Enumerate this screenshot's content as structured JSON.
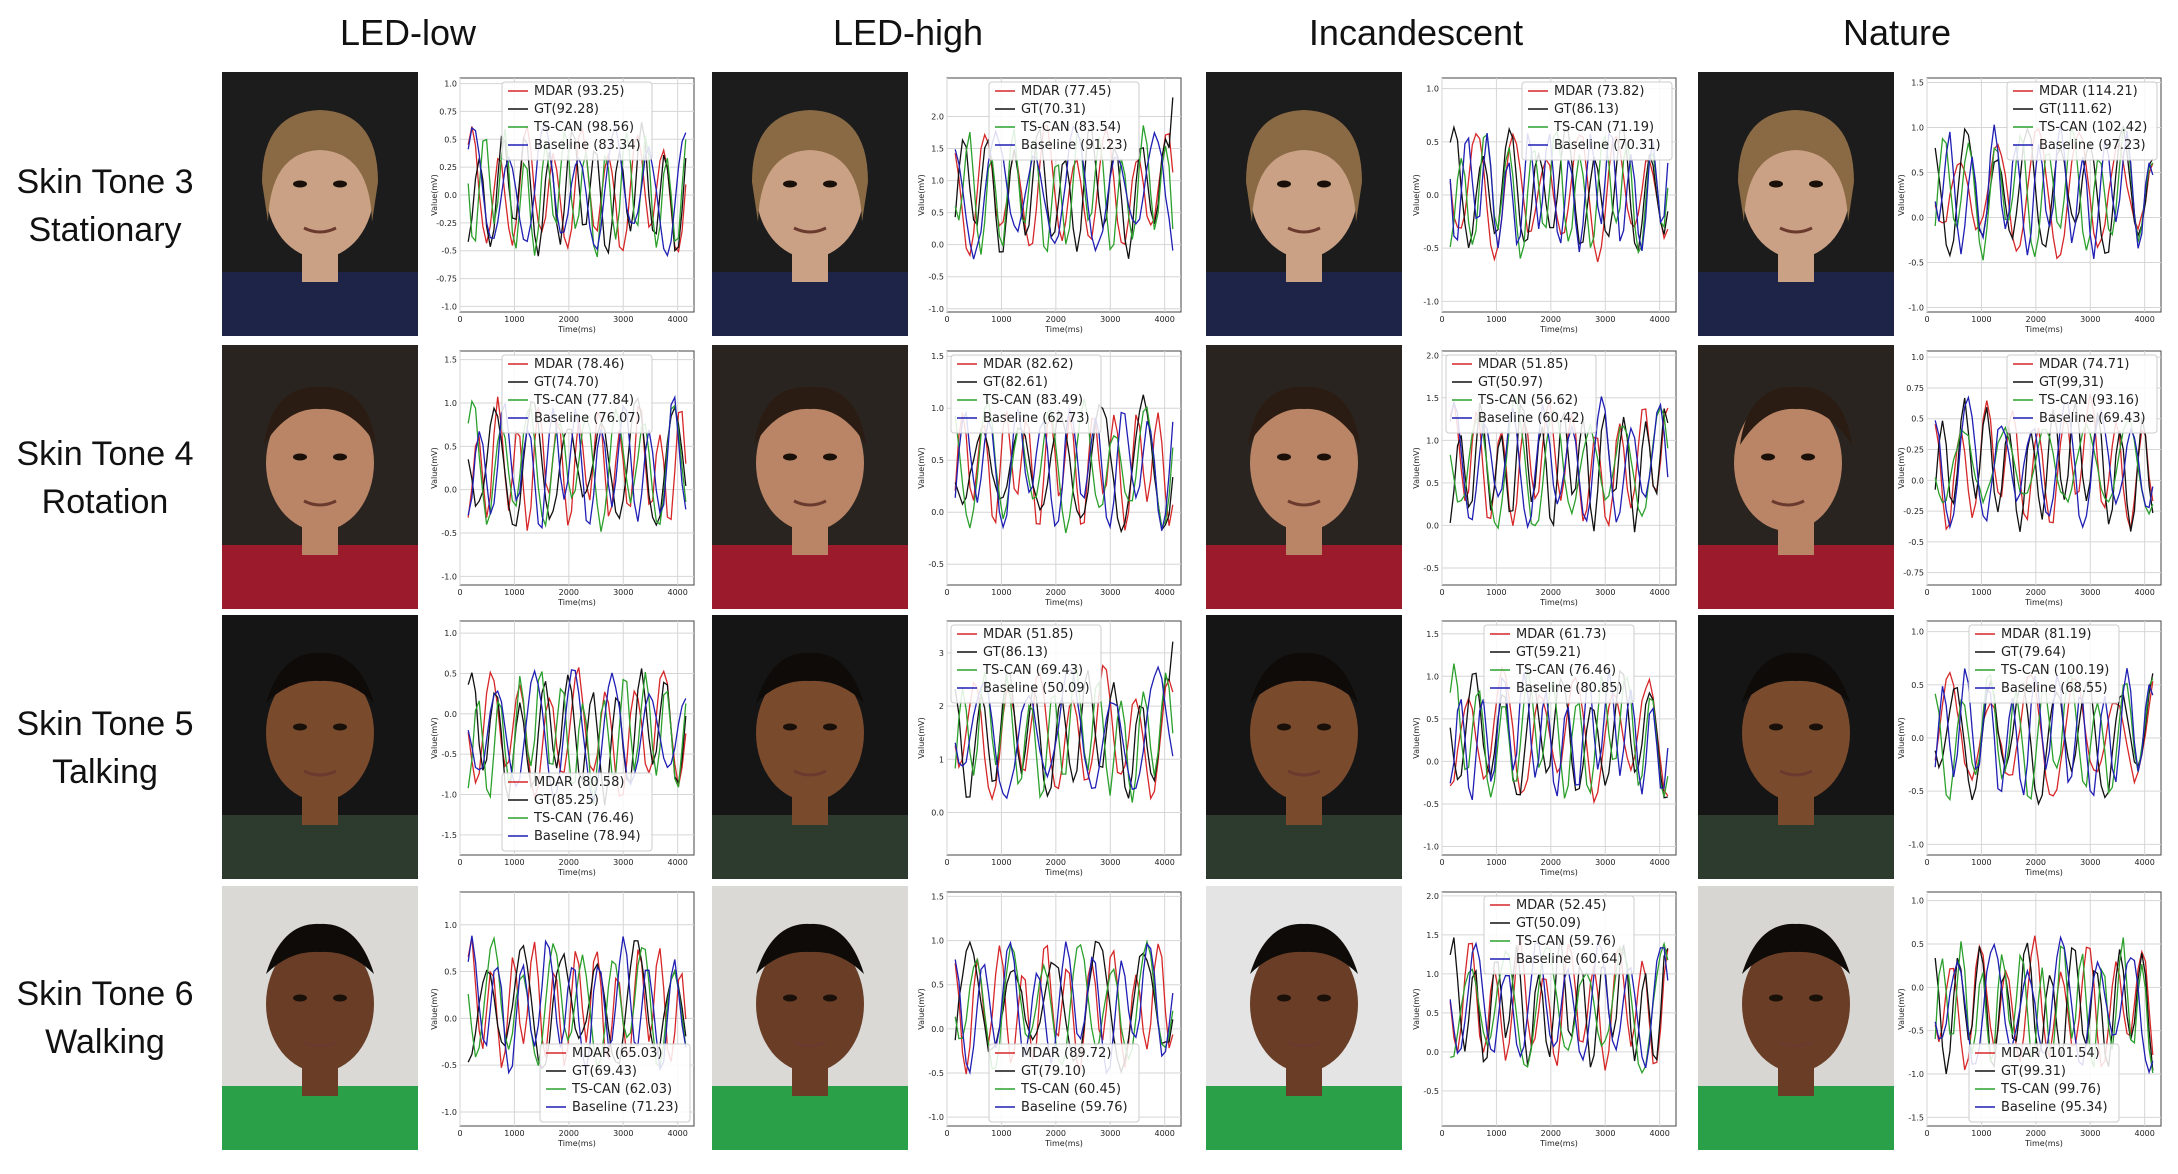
{
  "columns": [
    "LED-low",
    "LED-high",
    "Incandescent",
    "Nature"
  ],
  "rows": [
    {
      "tone": "Skin Tone 3",
      "motion": "Stationary"
    },
    {
      "tone": "Skin Tone 4",
      "motion": "Rotation"
    },
    {
      "tone": "Skin Tone 5",
      "motion": "Talking"
    },
    {
      "tone": "Skin Tone 6",
      "motion": "Walking"
    }
  ],
  "series_colors": {
    "MDAR": "#d62728",
    "GT": "#111111",
    "TS-CAN": "#2ca02c",
    "Baseline": "#1f1fb4"
  },
  "photo_palette": {
    "skin": [
      "#caa184",
      "#b98566",
      "#7a4a2d",
      "#6a3e26"
    ],
    "bg": [
      "#1c1c1c",
      "#2a2420",
      "#151515",
      "#dad9d6"
    ],
    "shirt": [
      "#1d2447",
      "#9b1b2c",
      "#2d3a2e",
      "#2aa148"
    ]
  },
  "chart_data": [
    {
      "type": "line",
      "row": 0,
      "col": 0,
      "xlabel": "Time(ms)",
      "ylabel": "Value(mV)",
      "ylim": [
        -1.05,
        1.05
      ],
      "yticks": [
        -1.0,
        -0.75,
        -0.5,
        -0.25,
        0.0,
        0.25,
        0.5,
        0.75,
        1.0
      ],
      "xticks": [
        0,
        1000,
        2000,
        3000,
        4000
      ],
      "legend_pos": "top",
      "legend": [
        "MDAR (93.25)",
        "GT(92.28)",
        "TS-CAN (98.56)",
        "Baseline (83.34)"
      ]
    },
    {
      "type": "line",
      "row": 0,
      "col": 1,
      "xlabel": "Time(ms)",
      "ylabel": "Value(mV)",
      "ylim": [
        -1.05,
        2.6
      ],
      "yticks": [
        -1.0,
        -0.5,
        0.0,
        0.5,
        1.0,
        1.5,
        2.0
      ],
      "xticks": [
        0,
        1000,
        2000,
        3000,
        4000
      ],
      "legend_pos": "top",
      "legend": [
        "MDAR (77.45)",
        "GT(70.31)",
        "TS-CAN (83.54)",
        "Baseline (91.23)"
      ]
    },
    {
      "type": "line",
      "row": 0,
      "col": 2,
      "xlabel": "Time(ms)",
      "ylabel": "Value(mV)",
      "ylim": [
        -1.1,
        1.1
      ],
      "yticks": [
        -1.0,
        -0.5,
        0.0,
        0.5,
        1.0
      ],
      "xticks": [
        0,
        1000,
        2000,
        3000,
        4000
      ],
      "legend_pos": "top-right",
      "legend": [
        "MDAR (73.82)",
        "GT(86.13)",
        "TS-CAN (71.19)",
        "Baseline (70.31)"
      ]
    },
    {
      "type": "line",
      "row": 0,
      "col": 3,
      "xlabel": "Time(ms)",
      "ylabel": "Value(mV)",
      "ylim": [
        -1.05,
        1.55
      ],
      "yticks": [
        -1.0,
        -0.5,
        0.0,
        0.5,
        1.0,
        1.5
      ],
      "xticks": [
        0,
        1000,
        2000,
        3000,
        4000
      ],
      "legend_pos": "top-right",
      "legend": [
        "MDAR (114.21)",
        "GT(111.62)",
        "TS-CAN (102.42)",
        "Baseline (97.23)"
      ]
    },
    {
      "type": "line",
      "row": 1,
      "col": 0,
      "xlabel": "Time(ms)",
      "ylabel": "Value(mV)",
      "ylim": [
        -1.1,
        1.6
      ],
      "yticks": [
        -1.0,
        -0.5,
        0.0,
        0.5,
        1.0,
        1.5
      ],
      "xticks": [
        0,
        1000,
        2000,
        3000,
        4000
      ],
      "legend_pos": "top",
      "legend": [
        "MDAR (78.46)",
        "GT(74.70)",
        "TS-CAN (77.84)",
        "Baseline (76.07)"
      ]
    },
    {
      "type": "line",
      "row": 1,
      "col": 1,
      "xlabel": "Time(ms)",
      "ylabel": "Value(mV)",
      "ylim": [
        -0.7,
        1.55
      ],
      "yticks": [
        -0.5,
        0.0,
        0.5,
        1.0,
        1.5
      ],
      "xticks": [
        0,
        1000,
        2000,
        3000,
        4000
      ],
      "legend_pos": "top-left",
      "legend": [
        "MDAR (82.62)",
        "GT(82.61)",
        "TS-CAN (83.49)",
        "Baseline (62.73)"
      ]
    },
    {
      "type": "line",
      "row": 1,
      "col": 2,
      "xlabel": "Time(ms)",
      "ylabel": "Value(mV)",
      "ylim": [
        -0.7,
        2.05
      ],
      "yticks": [
        -0.5,
        0.0,
        0.5,
        1.0,
        1.5,
        2.0
      ],
      "xticks": [
        0,
        1000,
        2000,
        3000,
        4000
      ],
      "legend_pos": "top-left",
      "legend": [
        "MDAR (51.85)",
        "GT(50.97)",
        "TS-CAN (56.62)",
        "Baseline (60.42)"
      ]
    },
    {
      "type": "line",
      "row": 1,
      "col": 3,
      "xlabel": "Time(ms)",
      "ylabel": "Value(mV)",
      "ylim": [
        -0.85,
        1.05
      ],
      "yticks": [
        -0.75,
        -0.5,
        -0.25,
        0.0,
        0.25,
        0.5,
        0.75,
        1.0
      ],
      "xticks": [
        0,
        1000,
        2000,
        3000,
        4000
      ],
      "legend_pos": "top-right",
      "legend": [
        "MDAR (74.71)",
        "GT(99,31)",
        "TS-CAN (93.16)",
        "Baseline (69.43)"
      ]
    },
    {
      "type": "line",
      "row": 2,
      "col": 0,
      "xlabel": "Time(ms)",
      "ylabel": "Value(mV)",
      "ylim": [
        -1.75,
        1.15
      ],
      "yticks": [
        -1.5,
        -1.0,
        -0.5,
        0.0,
        0.5,
        1.0
      ],
      "xticks": [
        0,
        1000,
        2000,
        3000,
        4000
      ],
      "legend_pos": "bottom",
      "legend": [
        "MDAR (80.58)",
        "GT(85.25)",
        "TS-CAN (76.46)",
        "Baseline (78.94)"
      ]
    },
    {
      "type": "line",
      "row": 2,
      "col": 1,
      "xlabel": "Time(ms)",
      "ylabel": "Value(mV)",
      "ylim": [
        -0.8,
        3.6
      ],
      "yticks": [
        0,
        1,
        2,
        3
      ],
      "xticks": [
        0,
        1000,
        2000,
        3000,
        4000
      ],
      "legend_pos": "top-left",
      "legend": [
        "MDAR (51.85)",
        "GT(86.13)",
        "TS-CAN (69.43)",
        "Baseline (50.09)"
      ]
    },
    {
      "type": "line",
      "row": 2,
      "col": 2,
      "xlabel": "Time(ms)",
      "ylabel": "Value(mV)",
      "ylim": [
        -1.1,
        1.65
      ],
      "yticks": [
        -1.0,
        -0.5,
        0.0,
        0.5,
        1.0,
        1.5
      ],
      "xticks": [
        0,
        1000,
        2000,
        3000,
        4000
      ],
      "legend_pos": "top",
      "legend": [
        "MDAR (61.73)",
        "GT(59.21)",
        "TS-CAN (76.46)",
        "Baseline (80.85)"
      ]
    },
    {
      "type": "line",
      "row": 2,
      "col": 3,
      "xlabel": "Time(ms)",
      "ylabel": "Value(mV)",
      "ylim": [
        -1.1,
        1.1
      ],
      "yticks": [
        -1.0,
        -0.5,
        0.0,
        0.5,
        1.0
      ],
      "xticks": [
        0,
        1000,
        2000,
        3000,
        4000
      ],
      "legend_pos": "top",
      "legend": [
        "MDAR (81.19)",
        "GT(79.64)",
        "TS-CAN (100.19)",
        "Baseline (68.55)"
      ]
    },
    {
      "type": "line",
      "row": 3,
      "col": 0,
      "xlabel": "Time(ms)",
      "ylabel": "Value(mV)",
      "ylim": [
        -1.15,
        1.35
      ],
      "yticks": [
        -1.0,
        -0.5,
        0.0,
        0.5,
        1.0
      ],
      "xticks": [
        0,
        1000,
        2000,
        3000,
        4000
      ],
      "legend_pos": "bottom-right",
      "legend": [
        "MDAR (65.03)",
        "GT(69.43)",
        "TS-CAN (62.03)",
        "Baseline (71.23)"
      ]
    },
    {
      "type": "line",
      "row": 3,
      "col": 1,
      "xlabel": "Time(ms)",
      "ylabel": "Value(mV)",
      "ylim": [
        -1.1,
        1.55
      ],
      "yticks": [
        -1.0,
        -0.5,
        0.0,
        0.5,
        1.0,
        1.5
      ],
      "xticks": [
        0,
        1000,
        2000,
        3000,
        4000
      ],
      "legend_pos": "bottom",
      "legend": [
        "MDAR (89.72)",
        "GT(79.10)",
        "TS-CAN (60.45)",
        "Baseline (59.76)"
      ]
    },
    {
      "type": "line",
      "row": 3,
      "col": 2,
      "xlabel": "Time(ms)",
      "ylabel": "Value(mV)",
      "ylim": [
        -0.95,
        2.05
      ],
      "yticks": [
        -0.5,
        0.0,
        0.5,
        1.0,
        1.5,
        2.0
      ],
      "xticks": [
        0,
        1000,
        2000,
        3000,
        4000
      ],
      "legend_pos": "top",
      "legend": [
        "MDAR (52.45)",
        "GT(50.09)",
        "TS-CAN (59.76)",
        "Baseline (60.64)"
      ]
    },
    {
      "type": "line",
      "row": 3,
      "col": 3,
      "xlabel": "Time(ms)",
      "ylabel": "Value(mV)",
      "ylim": [
        -1.6,
        1.1
      ],
      "yticks": [
        -1.5,
        -1.0,
        -0.5,
        0.0,
        0.5,
        1.0
      ],
      "xticks": [
        0,
        1000,
        2000,
        3000,
        4000
      ],
      "legend_pos": "bottom",
      "legend": [
        "MDAR (101.54)",
        "GT(99.31)",
        "TS-CAN (99.76)",
        "Baseline (95.34)"
      ]
    }
  ]
}
